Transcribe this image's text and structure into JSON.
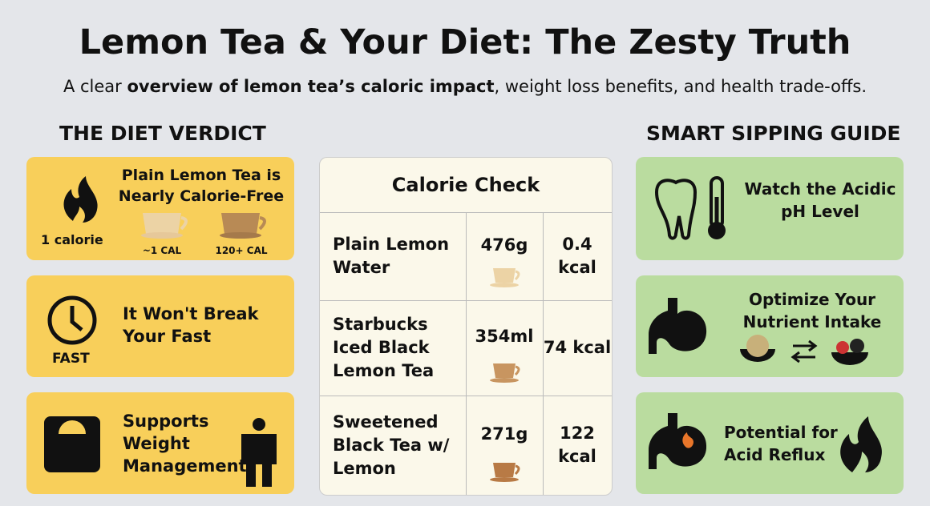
{
  "header": {
    "title": "Lemon Tea & Your Diet: The Zesty Truth",
    "subtitle": [
      "A clear ",
      "overview of lemon tea’s caloric impact",
      ", weight loss benefits, and health trade-offs."
    ]
  },
  "left": {
    "heading": "THE DIET VERDICT",
    "cards": [
      {
        "title": "Plain Lemon Tea is Nearly Calorie-Free",
        "icon_label": "1 calorie",
        "cups": [
          "~1 CAL",
          "120+ CAL"
        ]
      },
      {
        "title": "It Won't Break Your Fast",
        "icon_label": "FAST"
      },
      {
        "title": "Supports Weight Management"
      }
    ]
  },
  "table": {
    "title": "Calorie Check",
    "rows": [
      [
        "Plain Lemon Water",
        "476g",
        "0.4 kcal"
      ],
      [
        "Starbucks Iced Black Lemon Tea",
        "354ml",
        "74 kcal"
      ],
      [
        "Sweetened Black Tea w/ Lemon",
        "271g",
        "122 kcal"
      ]
    ]
  },
  "right": {
    "heading": "SMART SIPPING GUIDE",
    "cards": [
      {
        "title": "Watch the Acidic pH Level"
      },
      {
        "title": "Optimize Your Nutrient Intake"
      },
      {
        "title": "Potential for Acid Reflux"
      }
    ]
  }
}
